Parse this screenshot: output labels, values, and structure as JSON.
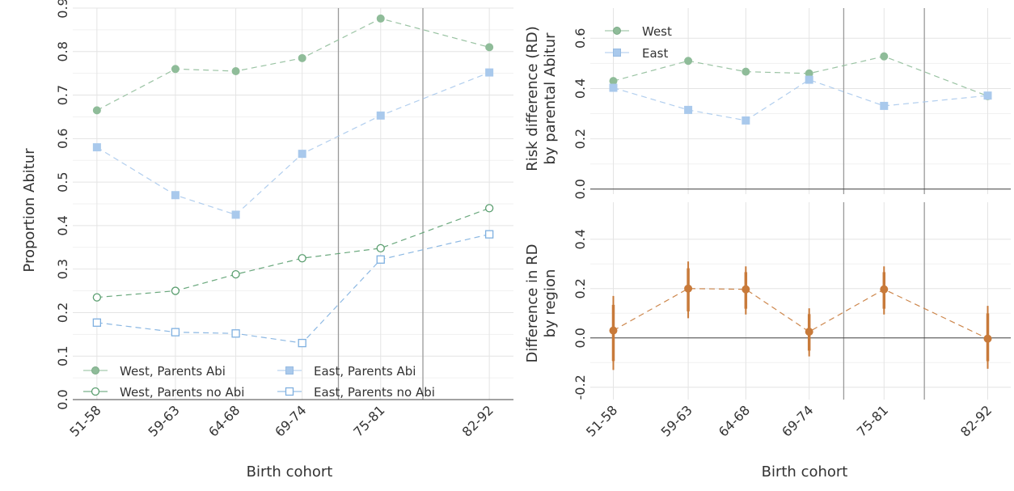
{
  "chart_data": [
    {
      "type": "line",
      "xlabel": "Birth cohort",
      "ylabel": "Proportion Abitur",
      "categories": [
        "51-58",
        "59-63",
        "64-68",
        "69-74",
        "75-81",
        "82-92"
      ],
      "x": [
        54.5,
        61,
        66,
        71.5,
        78,
        87
      ],
      "ylim": [
        0,
        0.9
      ],
      "yticks": [
        "0.0",
        "0.1",
        "0.2",
        "0.3",
        "0.4",
        "0.5",
        "0.6",
        "0.7",
        "0.8",
        "0.9"
      ],
      "vlines_x": [
        74.5,
        81.5
      ],
      "grid": true,
      "legend_position": "bottom-left",
      "series": [
        {
          "name": "West, Parents Abi",
          "values": [
            0.665,
            0.76,
            0.755,
            0.785,
            0.876,
            0.81
          ],
          "color": "#8fbc99",
          "marker": "circle",
          "filled": true
        },
        {
          "name": "West, Parents no Abi",
          "values": [
            0.235,
            0.25,
            0.288,
            0.325,
            0.348,
            0.44
          ],
          "color": "#5a9e6f",
          "marker": "circle",
          "filled": false
        },
        {
          "name": "East, Parents Abi",
          "values": [
            0.58,
            0.47,
            0.425,
            0.565,
            0.653,
            0.752
          ],
          "color": "#a9c9ec",
          "marker": "square",
          "filled": true
        },
        {
          "name": "East, Parents no Abi",
          "values": [
            0.177,
            0.155,
            0.152,
            0.13,
            0.322,
            0.38
          ],
          "color": "#7fb0e0",
          "marker": "square",
          "filled": false
        }
      ]
    },
    {
      "type": "line",
      "xlabel": "",
      "ylabel": "Risk difference (RD)\nby parental Abitur",
      "categories": [
        "51-58",
        "59-63",
        "64-68",
        "69-74",
        "75-81",
        "82-92"
      ],
      "x": [
        54.5,
        61,
        66,
        71.5,
        78,
        87
      ],
      "ylim": [
        -0.02,
        0.72
      ],
      "yticks": [
        "0.0",
        "0.2",
        "0.4",
        "0.6"
      ],
      "vlines_x": [
        74.5,
        81.5
      ],
      "grid": true,
      "legend_position": "top-left",
      "series": [
        {
          "name": "West",
          "values": [
            0.43,
            0.51,
            0.467,
            0.46,
            0.528,
            0.37
          ],
          "color": "#8fbc99",
          "marker": "circle",
          "filled": true
        },
        {
          "name": "East",
          "values": [
            0.403,
            0.315,
            0.273,
            0.435,
            0.331,
            0.372
          ],
          "color": "#a9c9ec",
          "marker": "square",
          "filled": true
        }
      ]
    },
    {
      "type": "scatter",
      "xlabel": "Birth cohort",
      "ylabel": "Difference in RD\nby region",
      "categories": [
        "51-58",
        "59-63",
        "64-68",
        "69-74",
        "75-81",
        "82-92"
      ],
      "x": [
        54.5,
        61,
        66,
        71.5,
        78,
        87
      ],
      "ylim": [
        -0.25,
        0.55
      ],
      "yticks": [
        "-0.2",
        "0.0",
        "0.2",
        "0.4"
      ],
      "vlines_x": [
        74.5,
        81.5
      ],
      "grid": true,
      "series": [
        {
          "values": [
            0.03,
            0.2,
            0.197,
            0.025,
            0.197,
            -0.003
          ],
          "ci_low": [
            -0.13,
            0.08,
            0.095,
            -0.075,
            0.095,
            -0.125
          ],
          "ci_high": [
            0.17,
            0.31,
            0.29,
            0.12,
            0.29,
            0.13
          ],
          "color": "#c87a3a",
          "marker": "circle",
          "filled": true
        }
      ]
    }
  ]
}
